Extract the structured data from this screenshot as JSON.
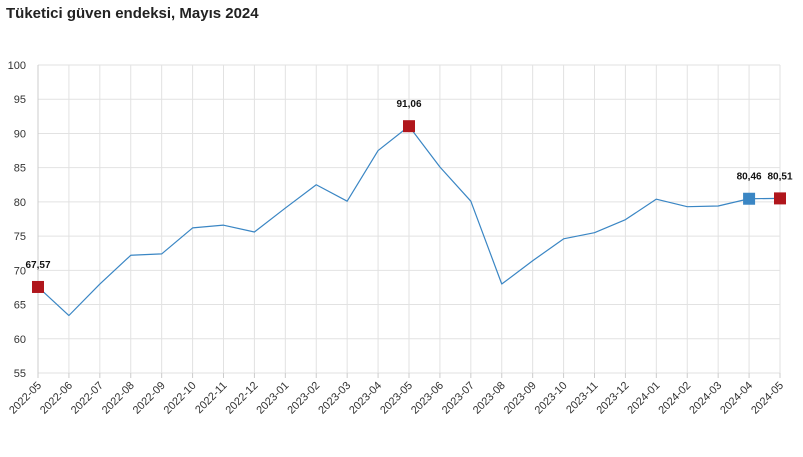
{
  "title": "Tüketici güven endeksi, Mayıs 2024",
  "chart_data": {
    "type": "line",
    "title": "Tüketici güven endeksi, Mayıs 2024",
    "xlabel": "",
    "ylabel": "",
    "ylim": [
      55,
      100
    ],
    "yticks": [
      55,
      60,
      65,
      70,
      75,
      80,
      85,
      90,
      95,
      100
    ],
    "grid": true,
    "categories": [
      "2022-05",
      "2022-06",
      "2022-07",
      "2022-08",
      "2022-09",
      "2022-10",
      "2022-11",
      "2022-12",
      "2023-01",
      "2023-02",
      "2023-03",
      "2023-04",
      "2023-05",
      "2023-06",
      "2023-07",
      "2023-08",
      "2023-09",
      "2023-10",
      "2023-11",
      "2023-12",
      "2024-01",
      "2024-02",
      "2024-03",
      "2024-04",
      "2024-05"
    ],
    "series": [
      {
        "color": "#3a86c4",
        "values": [
          67.57,
          63.4,
          68.0,
          72.2,
          72.4,
          76.2,
          76.6,
          75.6,
          79.1,
          82.5,
          80.1,
          87.5,
          91.06,
          85.1,
          80.1,
          68.0,
          71.4,
          74.6,
          75.5,
          77.4,
          80.4,
          79.3,
          79.4,
          80.46,
          80.51
        ]
      }
    ],
    "highlights": [
      {
        "category": "2022-05",
        "value": 67.57,
        "label": "67,57",
        "color": "#b0161c"
      },
      {
        "category": "2023-05",
        "value": 91.06,
        "label": "91,06",
        "color": "#b0161c"
      },
      {
        "category": "2024-04",
        "value": 80.46,
        "label": "80,46",
        "color": "#3a86c4"
      },
      {
        "category": "2024-05",
        "value": 80.51,
        "label": "80,51",
        "color": "#b0161c"
      }
    ]
  }
}
